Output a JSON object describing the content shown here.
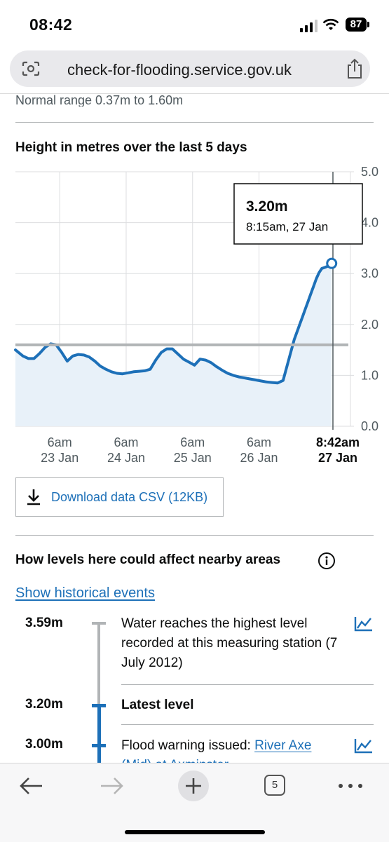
{
  "status_bar": {
    "time": "08:42",
    "battery": "87"
  },
  "browser": {
    "url": "check-for-flooding.service.gov.uk",
    "tab_count": "5"
  },
  "normal_range": "Normal range 0.37m to 1.60m",
  "chart_title": "Height in metres over the last 5 days",
  "chart_data": {
    "type": "area",
    "y_ticks": [
      "5.0",
      "4.0",
      "3.0",
      "2.0",
      "1.0",
      "0.0"
    ],
    "ylim": [
      0,
      5
    ],
    "x_ticks": [
      {
        "line1": "6am",
        "line2": "23 Jan"
      },
      {
        "line1": "6am",
        "line2": "24 Jan"
      },
      {
        "line1": "6am",
        "line2": "25 Jan"
      },
      {
        "line1": "6am",
        "line2": "26 Jan"
      },
      {
        "line1": "8:42am",
        "line2": "27 Jan",
        "bold": true
      }
    ],
    "hours_before_now": [
      114.7,
      112,
      110,
      108,
      106,
      104,
      102,
      100,
      98,
      96,
      94,
      92,
      90,
      88,
      86,
      84,
      82,
      80,
      78,
      76,
      74,
      72,
      70,
      68,
      66,
      64,
      62,
      60,
      58,
      56,
      54,
      52,
      50,
      48,
      46,
      44,
      42,
      40,
      38,
      36,
      34,
      32,
      30,
      28,
      26,
      24,
      22,
      20,
      18,
      16,
      14,
      12,
      11,
      10,
      9,
      8,
      7,
      6,
      5,
      4,
      3,
      2,
      1,
      0.45
    ],
    "heights": [
      1.5,
      1.38,
      1.33,
      1.33,
      1.43,
      1.55,
      1.62,
      1.6,
      1.45,
      1.28,
      1.38,
      1.41,
      1.4,
      1.36,
      1.28,
      1.18,
      1.12,
      1.07,
      1.04,
      1.03,
      1.05,
      1.07,
      1.08,
      1.09,
      1.12,
      1.3,
      1.45,
      1.52,
      1.52,
      1.42,
      1.32,
      1.26,
      1.2,
      1.32,
      1.3,
      1.25,
      1.17,
      1.1,
      1.04,
      1.0,
      0.97,
      0.95,
      0.93,
      0.91,
      0.89,
      0.87,
      0.86,
      0.85,
      0.9,
      1.3,
      1.7,
      2.0,
      2.15,
      2.3,
      2.45,
      2.6,
      2.75,
      2.9,
      3.02,
      3.1,
      3.12,
      3.14,
      3.17,
      3.2
    ],
    "threshold": 1.6,
    "tooltip": {
      "value": "3.20m",
      "time": "8:15am, 27 Jan"
    },
    "colors": {
      "line": "#1d70b8",
      "fill": "#e8f1f9",
      "threshold": "#b1b4b6",
      "grid": "#dcdddf"
    }
  },
  "download_label": "Download data CSV (12KB)",
  "impact_title": "How levels here could affect nearby areas",
  "historical_link": "Show historical events",
  "levels": [
    {
      "value": "3.59m",
      "text": "Water reaches the highest level recorded at this measuring station (7 July 2012)"
    },
    {
      "value": "3.20m",
      "text": "Latest level"
    },
    {
      "value": "3.00m",
      "text_prefix": "Flood warning issued: ",
      "link": "River Axe (Mid) at Axminster"
    }
  ]
}
